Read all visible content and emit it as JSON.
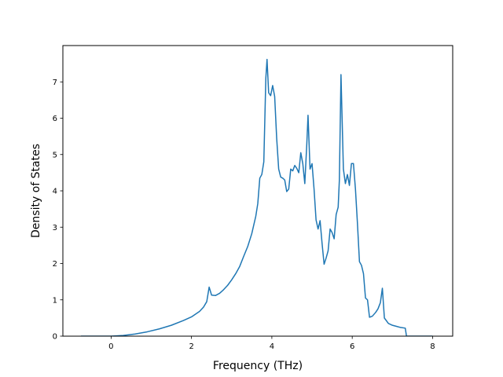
{
  "chart_data": {
    "type": "line",
    "title": "",
    "xlabel": "Frequency (THz)",
    "ylabel": "Density of States",
    "xlim": [
      -1.2,
      8.5
    ],
    "ylim": [
      0,
      8.0
    ],
    "xticks": [
      0,
      2,
      4,
      6,
      8
    ],
    "yticks": [
      0,
      1,
      2,
      3,
      4,
      5,
      6,
      7
    ],
    "grid": false,
    "legend": "none",
    "colors": {
      "line": "#1f77b4",
      "axes": "#000000",
      "background": "#ffffff"
    },
    "series": [
      {
        "x": [
          -0.75,
          -0.4,
          0.0,
          0.3,
          0.6,
          0.9,
          1.2,
          1.5,
          1.8,
          2.0,
          2.2,
          2.3,
          2.38,
          2.44,
          2.5,
          2.6,
          2.7,
          2.8,
          2.9,
          3.0,
          3.1,
          3.2,
          3.3,
          3.4,
          3.5,
          3.6,
          3.65,
          3.7,
          3.75,
          3.8,
          3.85,
          3.88,
          3.92,
          3.97,
          4.02,
          4.07,
          4.12,
          4.17,
          4.22,
          4.27,
          4.32,
          4.37,
          4.42,
          4.47,
          4.52,
          4.57,
          4.62,
          4.67,
          4.72,
          4.77,
          4.82,
          4.87,
          4.9,
          4.95,
          5.0,
          5.05,
          5.1,
          5.15,
          5.2,
          5.25,
          5.3,
          5.35,
          5.4,
          5.45,
          5.5,
          5.55,
          5.6,
          5.65,
          5.68,
          5.72,
          5.78,
          5.83,
          5.88,
          5.93,
          5.98,
          6.03,
          6.08,
          6.13,
          6.18,
          6.23,
          6.28,
          6.33,
          6.38,
          6.43,
          6.5,
          6.58,
          6.64,
          6.7,
          6.75,
          6.8,
          6.9,
          7.0,
          7.1,
          7.2,
          7.32,
          7.35,
          7.5,
          8.0
        ],
        "y": [
          0.0,
          0.0,
          0.0,
          0.02,
          0.06,
          0.12,
          0.2,
          0.3,
          0.43,
          0.53,
          0.68,
          0.8,
          0.95,
          1.35,
          1.13,
          1.12,
          1.18,
          1.28,
          1.4,
          1.55,
          1.72,
          1.92,
          2.2,
          2.47,
          2.82,
          3.3,
          3.65,
          4.35,
          4.45,
          4.8,
          7.1,
          7.62,
          6.7,
          6.62,
          6.9,
          6.6,
          5.45,
          4.6,
          4.38,
          4.35,
          4.3,
          3.98,
          4.05,
          4.6,
          4.55,
          4.7,
          4.62,
          4.5,
          5.05,
          4.75,
          4.2,
          5.3,
          6.08,
          4.6,
          4.75,
          4.05,
          3.2,
          2.95,
          3.18,
          2.55,
          1.98,
          2.15,
          2.35,
          2.95,
          2.85,
          2.68,
          3.35,
          3.55,
          4.3,
          7.2,
          4.6,
          4.2,
          4.45,
          4.15,
          4.75,
          4.75,
          4.05,
          3.1,
          2.05,
          1.95,
          1.72,
          1.05,
          1.0,
          0.52,
          0.55,
          0.65,
          0.75,
          0.92,
          1.32,
          0.5,
          0.35,
          0.3,
          0.27,
          0.24,
          0.22,
          0.0,
          0.0,
          0.0
        ]
      }
    ]
  }
}
